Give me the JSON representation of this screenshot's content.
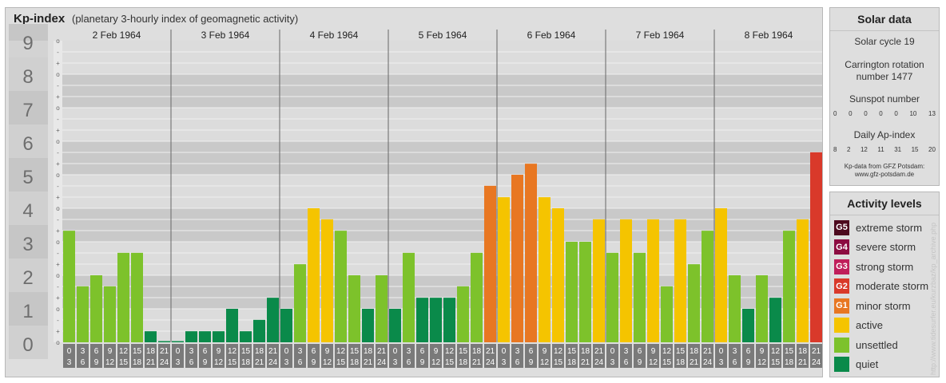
{
  "chart_data": {
    "type": "bar",
    "title": "Kp-index",
    "subtitle": "(planetary 3-hourly index of geomagnetic activity)",
    "ylim": [
      0,
      9
    ],
    "y_ticks": [
      "0",
      "1",
      "2",
      "3",
      "4",
      "5",
      "6",
      "7",
      "8",
      "9"
    ],
    "minor_tick_labels": [
      "-",
      "o",
      "+"
    ],
    "days": [
      "2 Feb 1964",
      "3 Feb 1964",
      "4 Feb 1964",
      "5 Feb 1964",
      "6 Feb 1964",
      "7 Feb 1964",
      "8 Feb 1964"
    ],
    "hour_ranges": [
      [
        "0",
        "3"
      ],
      [
        "3",
        "6"
      ],
      [
        "6",
        "9"
      ],
      [
        "9",
        "12"
      ],
      [
        "12",
        "15"
      ],
      [
        "15",
        "18"
      ],
      [
        "18",
        "21"
      ],
      [
        "21",
        "24"
      ]
    ],
    "values": [
      [
        3.33,
        1.67,
        2.0,
        1.67,
        2.67,
        2.67,
        0.33,
        0.0
      ],
      [
        0.0,
        0.33,
        0.33,
        0.33,
        1.0,
        0.33,
        0.67,
        1.33
      ],
      [
        1.0,
        2.33,
        4.0,
        3.67,
        3.33,
        2.0,
        1.0,
        2.0
      ],
      [
        1.0,
        2.67,
        1.33,
        1.33,
        1.33,
        1.67,
        2.67,
        4.67
      ],
      [
        4.33,
        5.0,
        5.33,
        4.33,
        4.0,
        3.0,
        3.0,
        3.67
      ],
      [
        2.67,
        3.67,
        2.67,
        3.67,
        1.67,
        3.67,
        2.33,
        3.33
      ],
      [
        4.0,
        2.0,
        1.0,
        2.0,
        1.33,
        3.33,
        3.67,
        5.67
      ]
    ],
    "grid": true
  },
  "solar": {
    "heading": "Solar data",
    "cycle": "Solar cycle 19",
    "carrington_line1": "Carrington rotation",
    "carrington_line2": "number 1477",
    "sunspot_label": "Sunspot number",
    "sunspot_values": [
      "0",
      "0",
      "0",
      "0",
      "0",
      "10",
      "13"
    ],
    "ap_label": "Daily Ap-index",
    "ap_values": [
      "8",
      "2",
      "12",
      "11",
      "31",
      "15",
      "20"
    ],
    "source_line1": "Kp-data from GFZ Potsdam:",
    "source_line2": "www.gfz-potsdam.de"
  },
  "activity": {
    "heading": "Activity levels",
    "levels": [
      {
        "code": "G5",
        "label": "extreme storm",
        "color": "#4d0a1e"
      },
      {
        "code": "G4",
        "label": "severe storm",
        "color": "#8c0c41"
      },
      {
        "code": "G3",
        "label": "strong storm",
        "color": "#c01e5a"
      },
      {
        "code": "G2",
        "label": "moderate storm",
        "color": "#d9392a"
      },
      {
        "code": "G1",
        "label": "minor storm",
        "color": "#e87722"
      },
      {
        "code": "",
        "label": "active",
        "color": "#f5c400"
      },
      {
        "code": "",
        "label": "unsettled",
        "color": "#7dc22b"
      },
      {
        "code": "",
        "label": "quiet",
        "color": "#0a8a4a"
      }
    ]
  },
  "credit": "http://www.tidesurfer.eu/kurzbaz/kp_archive.php"
}
